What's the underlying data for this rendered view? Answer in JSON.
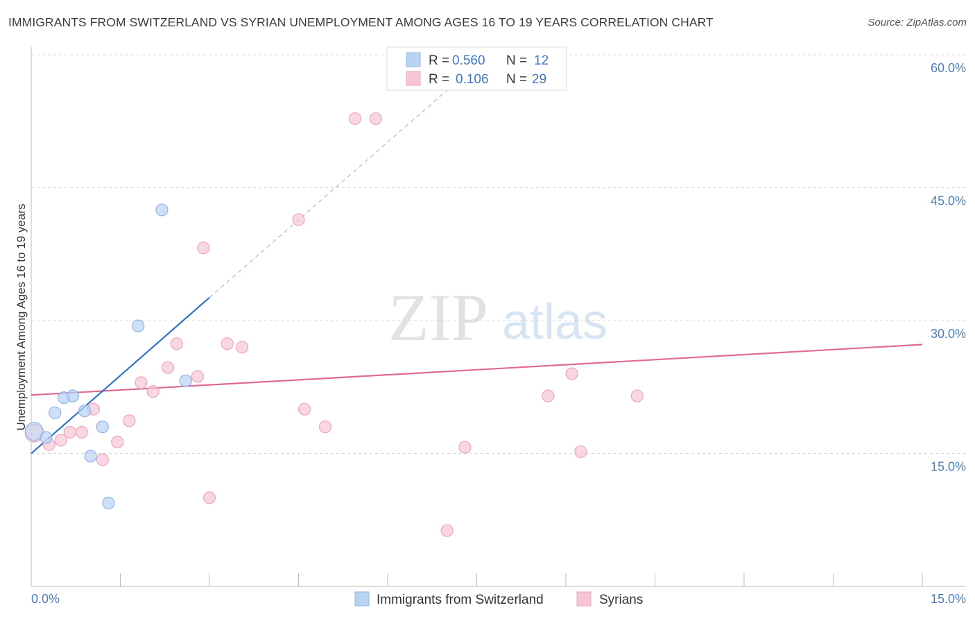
{
  "title": "IMMIGRANTS FROM SWITZERLAND VS SYRIAN UNEMPLOYMENT AMONG AGES 16 TO 19 YEARS CORRELATION CHART",
  "source": "Source: ZipAtlas.com",
  "watermark": {
    "zip": "ZIP",
    "atlas": "atlas"
  },
  "colors": {
    "blue_fill": "#b9d3f3",
    "blue_stroke": "#8fb4e6",
    "blue_line": "#2e74c9",
    "pink_fill": "#f6c6d5",
    "pink_stroke": "#eea5bd",
    "pink_line": "#e06a96",
    "grid": "#d8d8d8",
    "tick_label": "#4a7fc1"
  },
  "legend": {
    "rows": [
      {
        "r_label": "R =",
        "r_value": "0.560",
        "n_label": "N =",
        "n_value": "12"
      },
      {
        "r_label": "R =",
        "r_value": "0.106",
        "n_label": "N =",
        "n_value": "29"
      }
    ]
  },
  "chart_data": {
    "type": "scatter",
    "xlabel": "",
    "ylabel": "Unemployment Among Ages 16 to 19 years",
    "xlim": [
      0,
      15
    ],
    "ylim": [
      0,
      60
    ],
    "x_tick_labels": [
      "0.0%",
      "15.0%"
    ],
    "y_ticks": [
      15,
      30,
      45,
      60
    ],
    "y_tick_labels": [
      "15.0%",
      "30.0%",
      "45.0%",
      "60.0%"
    ],
    "grid": true,
    "series": [
      {
        "name": "Immigrants from Switzerland",
        "color": "blue",
        "points": [
          [
            0.05,
            17.5
          ],
          [
            0.25,
            16.8
          ],
          [
            0.4,
            19.6
          ],
          [
            0.55,
            21.3
          ],
          [
            0.7,
            21.5
          ],
          [
            0.9,
            19.8
          ],
          [
            1.0,
            14.7
          ],
          [
            1.2,
            18.0
          ],
          [
            1.3,
            9.4
          ],
          [
            1.8,
            29.4
          ],
          [
            2.2,
            42.5
          ],
          [
            2.6,
            23.2
          ]
        ],
        "trend": {
          "x0": 0,
          "y0": 15.0,
          "x1": 3.0,
          "y1": 32.6,
          "dash_to_x": 7.0,
          "dash_to_y": 56.0
        }
      },
      {
        "name": "Syrians",
        "color": "pink",
        "points": [
          [
            0.05,
            17.3
          ],
          [
            0.3,
            16.0
          ],
          [
            0.5,
            16.5
          ],
          [
            0.65,
            17.4
          ],
          [
            0.85,
            17.4
          ],
          [
            1.05,
            20.0
          ],
          [
            1.2,
            14.3
          ],
          [
            1.45,
            16.3
          ],
          [
            1.65,
            18.7
          ],
          [
            1.85,
            23.0
          ],
          [
            2.05,
            22.0
          ],
          [
            2.3,
            24.7
          ],
          [
            2.45,
            27.4
          ],
          [
            2.8,
            23.7
          ],
          [
            2.9,
            38.2
          ],
          [
            3.0,
            10.0
          ],
          [
            3.3,
            27.4
          ],
          [
            3.55,
            27.0
          ],
          [
            4.5,
            41.4
          ],
          [
            4.6,
            20.0
          ],
          [
            4.95,
            18.0
          ],
          [
            5.45,
            52.8
          ],
          [
            5.8,
            52.8
          ],
          [
            7.0,
            6.3
          ],
          [
            7.3,
            15.7
          ],
          [
            8.7,
            21.5
          ],
          [
            9.1,
            24.0
          ],
          [
            9.25,
            15.2
          ],
          [
            10.2,
            21.5
          ]
        ],
        "trend": {
          "x0": 0,
          "y0": 21.6,
          "x1": 15.0,
          "y1": 27.3
        }
      }
    ]
  }
}
